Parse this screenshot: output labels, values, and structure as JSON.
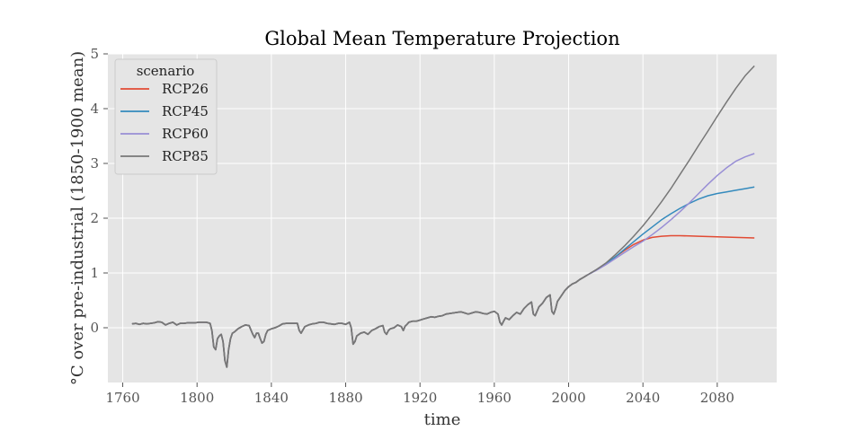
{
  "chart_data": {
    "type": "line",
    "title": "Global Mean Temperature Projection",
    "xlabel": "time",
    "ylabel": "°C over pre-industrial (1850-1900 mean)",
    "xlim": [
      1752,
      2112
    ],
    "ylim": [
      -1,
      5
    ],
    "xticks": [
      1760,
      1800,
      1840,
      1880,
      1920,
      1960,
      2000,
      2040,
      2080
    ],
    "yticks": [
      0,
      1,
      2,
      3,
      4,
      5
    ],
    "grid": true,
    "legend": {
      "title": "scenario",
      "position": "top-left"
    },
    "historical": {
      "x": [
        1765,
        1767,
        1769,
        1771,
        1773,
        1775,
        1777,
        1779,
        1781,
        1783,
        1785,
        1787,
        1789,
        1791,
        1793,
        1795,
        1797,
        1799,
        1801,
        1803,
        1805,
        1807,
        1808,
        1809,
        1810,
        1811,
        1812,
        1813,
        1814,
        1815,
        1816,
        1817,
        1818,
        1819,
        1820,
        1822,
        1824,
        1826,
        1828,
        1830,
        1831,
        1832,
        1833,
        1834,
        1835,
        1836,
        1837,
        1838,
        1840,
        1842,
        1844,
        1846,
        1848,
        1850,
        1852,
        1854,
        1855,
        1856,
        1857,
        1858,
        1860,
        1862,
        1864,
        1866,
        1868,
        1870,
        1872,
        1874,
        1876,
        1878,
        1880,
        1882,
        1883,
        1884,
        1885,
        1886,
        1888,
        1890,
        1892,
        1894,
        1896,
        1898,
        1900,
        1901,
        1902,
        1903,
        1904,
        1906,
        1908,
        1910,
        1911,
        1912,
        1913,
        1914,
        1916,
        1918,
        1920,
        1922,
        1924,
        1926,
        1928,
        1930,
        1932,
        1934,
        1936,
        1938,
        1940,
        1942,
        1944,
        1946,
        1948,
        1950,
        1952,
        1954,
        1956,
        1958,
        1960,
        1962,
        1963,
        1964,
        1965,
        1966,
        1968,
        1970,
        1972,
        1974,
        1976,
        1978,
        1980,
        1981,
        1982,
        1983,
        1984,
        1986,
        1988,
        1990,
        1991,
        1992,
        1993,
        1994,
        1996,
        1998,
        2000,
        2002,
        2004,
        2006,
        2008,
        2010
      ],
      "y": [
        0.07,
        0.08,
        0.06,
        0.08,
        0.07,
        0.08,
        0.09,
        0.11,
        0.1,
        0.05,
        0.08,
        0.1,
        0.05,
        0.08,
        0.08,
        0.09,
        0.09,
        0.09,
        0.1,
        0.1,
        0.1,
        0.08,
        -0.05,
        -0.35,
        -0.4,
        -0.2,
        -0.15,
        -0.12,
        -0.25,
        -0.6,
        -0.72,
        -0.4,
        -0.2,
        -0.1,
        -0.08,
        -0.02,
        0.02,
        0.05,
        0.04,
        -0.12,
        -0.18,
        -0.1,
        -0.1,
        -0.2,
        -0.28,
        -0.25,
        -0.12,
        -0.05,
        -0.02,
        0.0,
        0.03,
        0.07,
        0.08,
        0.08,
        0.08,
        0.08,
        -0.05,
        -0.1,
        -0.04,
        0.02,
        0.05,
        0.07,
        0.08,
        0.1,
        0.1,
        0.08,
        0.07,
        0.06,
        0.08,
        0.08,
        0.06,
        0.1,
        0.0,
        -0.3,
        -0.25,
        -0.15,
        -0.1,
        -0.08,
        -0.12,
        -0.05,
        -0.02,
        0.02,
        0.04,
        -0.08,
        -0.12,
        -0.05,
        -0.02,
        0.0,
        0.05,
        0.02,
        -0.05,
        0.03,
        0.06,
        0.1,
        0.12,
        0.12,
        0.14,
        0.16,
        0.18,
        0.2,
        0.19,
        0.21,
        0.22,
        0.25,
        0.26,
        0.27,
        0.28,
        0.29,
        0.27,
        0.25,
        0.27,
        0.29,
        0.28,
        0.26,
        0.25,
        0.28,
        0.3,
        0.25,
        0.1,
        0.05,
        0.12,
        0.18,
        0.15,
        0.22,
        0.28,
        0.25,
        0.35,
        0.42,
        0.47,
        0.25,
        0.22,
        0.3,
        0.38,
        0.45,
        0.55,
        0.6,
        0.3,
        0.25,
        0.35,
        0.48,
        0.58,
        0.68,
        0.75,
        0.8,
        0.83,
        0.88,
        0.92,
        0.96
      ]
    },
    "series": [
      {
        "name": "RCP26",
        "color": "#E24A33",
        "x": [
          2010,
          2015,
          2020,
          2025,
          2030,
          2035,
          2040,
          2045,
          2050,
          2055,
          2060,
          2065,
          2070,
          2080,
          2090,
          2100
        ],
        "y": [
          0.96,
          1.06,
          1.17,
          1.29,
          1.41,
          1.52,
          1.6,
          1.65,
          1.67,
          1.68,
          1.68,
          1.675,
          1.67,
          1.66,
          1.65,
          1.64
        ]
      },
      {
        "name": "RCP45",
        "color": "#348ABD",
        "x": [
          2010,
          2015,
          2020,
          2025,
          2030,
          2035,
          2040,
          2045,
          2050,
          2055,
          2060,
          2065,
          2070,
          2075,
          2080,
          2085,
          2090,
          2095,
          2100
        ],
        "y": [
          0.96,
          1.06,
          1.17,
          1.29,
          1.43,
          1.57,
          1.71,
          1.84,
          1.97,
          2.08,
          2.18,
          2.27,
          2.35,
          2.41,
          2.45,
          2.48,
          2.51,
          2.54,
          2.57
        ]
      },
      {
        "name": "RCP60",
        "color": "#988ED5",
        "x": [
          2010,
          2015,
          2020,
          2025,
          2030,
          2035,
          2040,
          2045,
          2050,
          2055,
          2060,
          2065,
          2070,
          2075,
          2080,
          2085,
          2090,
          2095,
          2100
        ],
        "y": [
          0.96,
          1.05,
          1.15,
          1.26,
          1.37,
          1.48,
          1.58,
          1.7,
          1.83,
          1.97,
          2.12,
          2.28,
          2.45,
          2.62,
          2.78,
          2.92,
          3.04,
          3.12,
          3.18
        ]
      },
      {
        "name": "RCP85",
        "color": "#777777",
        "x": [
          2010,
          2015,
          2020,
          2025,
          2030,
          2035,
          2040,
          2045,
          2050,
          2055,
          2060,
          2065,
          2070,
          2075,
          2080,
          2085,
          2090,
          2095,
          2100
        ],
        "y": [
          0.96,
          1.06,
          1.18,
          1.33,
          1.49,
          1.67,
          1.86,
          2.07,
          2.3,
          2.54,
          2.8,
          3.06,
          3.33,
          3.59,
          3.86,
          4.12,
          4.37,
          4.6,
          4.78
        ]
      }
    ]
  }
}
